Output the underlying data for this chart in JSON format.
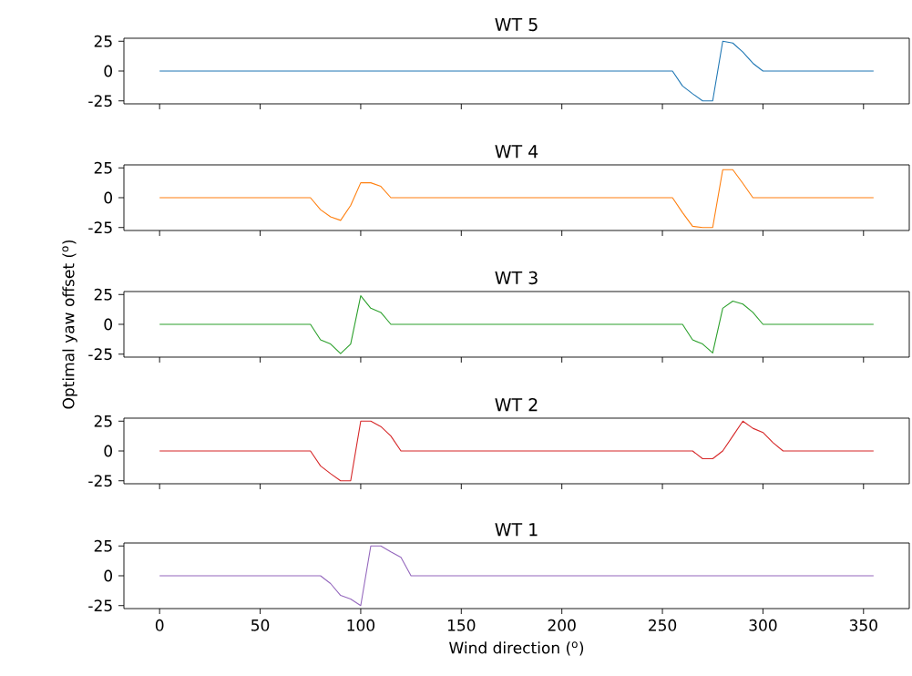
{
  "chart_data": [
    {
      "type": "line",
      "title": "WT 5",
      "xlim": [
        -17.75,
        372.75
      ],
      "xticks": [
        0,
        50,
        100,
        150,
        200,
        250,
        300,
        350
      ],
      "ylim": [
        -27.5,
        27.5
      ],
      "yticks": [
        -25,
        0,
        25
      ],
      "tick_labels": "y",
      "series": [
        {
          "color": "#1f77b4",
          "x": [
            0,
            255,
            260,
            265,
            270,
            275,
            280,
            285,
            290,
            295,
            300,
            355
          ],
          "values": [
            0,
            0,
            -12.5,
            -19,
            -25,
            -25,
            25,
            23.5,
            16,
            6.5,
            0,
            0
          ]
        }
      ]
    },
    {
      "type": "line",
      "title": "WT 4",
      "xlim": [
        -17.75,
        372.75
      ],
      "xticks": [
        0,
        50,
        100,
        150,
        200,
        250,
        300,
        350
      ],
      "ylim": [
        -27.5,
        27.5
      ],
      "yticks": [
        -25,
        0,
        25
      ],
      "tick_labels": "y",
      "series": [
        {
          "color": "#ff7f0e",
          "x": [
            0,
            75,
            80,
            85,
            90,
            95,
            100,
            105,
            110,
            115,
            255,
            260,
            265,
            270,
            275,
            280,
            285,
            290,
            295,
            355
          ],
          "values": [
            0,
            0,
            -10,
            -16,
            -19,
            -6.5,
            12.5,
            12.5,
            9.5,
            0,
            0,
            -12.5,
            -24,
            -25,
            -25,
            23.5,
            23.5,
            12,
            0,
            0
          ]
        }
      ]
    },
    {
      "type": "line",
      "title": "WT 3",
      "ylabel": "Optimal yaw offset ($^{o}$)",
      "xlim": [
        -17.75,
        372.75
      ],
      "xticks": [
        0,
        50,
        100,
        150,
        200,
        250,
        300,
        350
      ],
      "ylim": [
        -27.5,
        27.5
      ],
      "yticks": [
        -25,
        0,
        25
      ],
      "tick_labels": "y",
      "series": [
        {
          "color": "#2ca02c",
          "x": [
            0,
            75,
            80,
            85,
            90,
            95,
            100,
            105,
            110,
            115,
            260,
            265,
            270,
            275,
            280,
            285,
            290,
            295,
            300,
            355
          ],
          "values": [
            0,
            0,
            -13,
            -16.5,
            -24.5,
            -16.5,
            24,
            13.5,
            10,
            0,
            0,
            -13,
            -16.5,
            -24,
            13.5,
            19.5,
            17,
            10,
            0,
            0
          ]
        }
      ]
    },
    {
      "type": "line",
      "title": "WT 2",
      "xlim": [
        -17.75,
        372.75
      ],
      "xticks": [
        0,
        50,
        100,
        150,
        200,
        250,
        300,
        350
      ],
      "ylim": [
        -27.5,
        27.5
      ],
      "yticks": [
        -25,
        0,
        25
      ],
      "tick_labels": "y",
      "series": [
        {
          "color": "#d62728",
          "x": [
            0,
            75,
            80,
            85,
            90,
            95,
            100,
            105,
            110,
            115,
            120,
            265,
            270,
            275,
            280,
            285,
            290,
            295,
            300,
            305,
            310,
            355
          ],
          "values": [
            0,
            0,
            -12.5,
            -19,
            -25,
            -25,
            25,
            25,
            20.5,
            12.5,
            0,
            0,
            -6.5,
            -6.5,
            0,
            12.5,
            25,
            19,
            15.5,
            7,
            0,
            0
          ]
        }
      ]
    },
    {
      "type": "line",
      "title": "WT 1",
      "xlabel": "Wind direction ($^{o}$)",
      "xlim": [
        -17.75,
        372.75
      ],
      "xticks": [
        0,
        50,
        100,
        150,
        200,
        250,
        300,
        350
      ],
      "ylim": [
        -27.5,
        27.5
      ],
      "yticks": [
        -25,
        0,
        25
      ],
      "series": [
        {
          "color": "#9467bd",
          "x": [
            0,
            80,
            85,
            90,
            95,
            100,
            105,
            110,
            115,
            120,
            125,
            355
          ],
          "values": [
            0,
            0,
            -6.5,
            -16.5,
            -19.5,
            -25,
            25,
            25,
            20,
            15.5,
            0,
            0
          ]
        }
      ]
    }
  ]
}
